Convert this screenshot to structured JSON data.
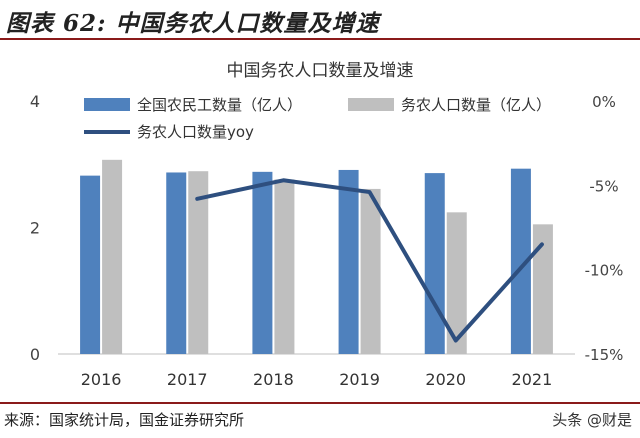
{
  "header": {
    "caption": "图表 62:  中国务农人口数量及增速"
  },
  "footer": {
    "source": "来源：国家统计局，国金证券研究所",
    "watermark": "头条 @财是"
  },
  "chart_data": {
    "type": "bar",
    "title": "中国务农人口数量及增速",
    "categories": [
      "2016",
      "2017",
      "2018",
      "2019",
      "2020",
      "2021"
    ],
    "series": [
      {
        "name": "全国农民工数量（亿人）",
        "axis": "left",
        "kind": "bar",
        "color": "#4f81bd",
        "values": [
          2.82,
          2.87,
          2.88,
          2.91,
          2.86,
          2.93
        ]
      },
      {
        "name": "务农人口数量（亿人）",
        "axis": "left",
        "kind": "bar",
        "color": "#bfbfbf",
        "values": [
          3.07,
          2.89,
          2.76,
          2.61,
          2.24,
          2.05
        ]
      },
      {
        "name": "务农人口数量yoy",
        "axis": "right",
        "kind": "line",
        "color": "#2e4f7f",
        "values": [
          null,
          -5.8,
          -4.7,
          -5.4,
          -14.2,
          -8.5
        ]
      }
    ],
    "y_left": {
      "min": 0,
      "max": 4,
      "ticks": [
        "0",
        "2",
        "4"
      ],
      "tick_values": [
        0,
        2,
        4
      ]
    },
    "y_right": {
      "min": -15,
      "max": 0,
      "ticks": [
        "0%",
        "-5%",
        "-10%",
        "-15%"
      ],
      "tick_values": [
        0,
        -5,
        -10,
        -15
      ]
    },
    "legend_position": "top",
    "grid": false
  }
}
